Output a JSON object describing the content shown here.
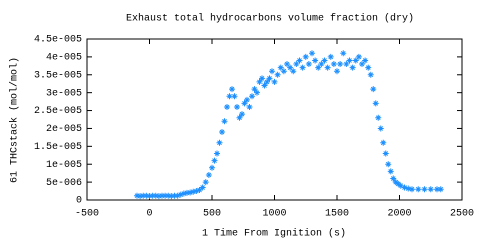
{
  "chart_data": {
    "type": "scatter",
    "title": "Exhaust total hydrocarbons volume fraction (dry)",
    "x_label": "1 Time From Ignition (s)",
    "y_label": "61 THCstack (mol/mol)",
    "color": "#1e90ff",
    "xlim": [
      -500,
      2500
    ],
    "xticks": [
      -500,
      0,
      500,
      1000,
      1500,
      2000,
      2500
    ],
    "ylim": [
      0,
      4.5e-05
    ],
    "yticks": [
      0,
      {
        "value": 5e-06,
        "label": "5e-006"
      },
      {
        "value": 1e-05,
        "label": "1e-005"
      },
      {
        "value": 1.5e-05,
        "label": "1.5e-005"
      },
      {
        "value": 2e-05,
        "label": "2e-005"
      },
      {
        "value": 2.5e-05,
        "label": "2.5e-005"
      },
      {
        "value": 3e-05,
        "label": "3e-005"
      },
      {
        "value": 3.5e-05,
        "label": "3.5e-005"
      },
      {
        "value": 4e-05,
        "label": "4e-005"
      },
      {
        "value": 4.5e-05,
        "label": "4.5e-005"
      }
    ],
    "x": [
      -100,
      -75,
      -50,
      -25,
      0,
      25,
      50,
      75,
      100,
      125,
      150,
      175,
      200,
      225,
      250,
      275,
      300,
      325,
      350,
      375,
      400,
      425,
      450,
      475,
      500,
      520,
      540,
      560,
      580,
      600,
      620,
      640,
      660,
      680,
      700,
      720,
      740,
      760,
      780,
      800,
      820,
      840,
      860,
      880,
      900,
      920,
      940,
      960,
      980,
      1000,
      1025,
      1050,
      1075,
      1100,
      1125,
      1150,
      1175,
      1200,
      1225,
      1250,
      1275,
      1300,
      1325,
      1350,
      1375,
      1400,
      1425,
      1450,
      1475,
      1500,
      1525,
      1550,
      1575,
      1600,
      1625,
      1650,
      1675,
      1700,
      1725,
      1750,
      1770,
      1790,
      1810,
      1830,
      1850,
      1870,
      1890,
      1910,
      1930,
      1950,
      1970,
      1990,
      2010,
      2040,
      2070,
      2100,
      2150,
      2200,
      2250,
      2300,
      2330
    ],
    "values": [
      1.2e-06,
      1.1e-06,
      1.2e-06,
      1.2e-06,
      1.1e-06,
      1.2e-06,
      1.2e-06,
      1.1e-06,
      1.2e-06,
      1.2e-06,
      1.2e-06,
      1.1e-06,
      1.2e-06,
      1.2e-06,
      1.5e-06,
      1.8e-06,
      2e-06,
      2.1e-06,
      2.3e-06,
      2.5e-06,
      2.8e-06,
      3.5e-06,
      5e-06,
      7e-06,
      9e-06,
      1.1e-05,
      1.3e-05,
      1.6e-05,
      1.9e-05,
      2.2e-05,
      2.6e-05,
      2.9e-05,
      3.1e-05,
      2.9e-05,
      2.6e-05,
      2.3e-05,
      2.4e-05,
      2.7e-05,
      2.8e-05,
      2.6e-05,
      2.9e-05,
      3.1e-05,
      3e-05,
      3.3e-05,
      3.4e-05,
      3.2e-05,
      3.3e-05,
      3.4e-05,
      3.6e-05,
      3.3e-05,
      3.5e-05,
      3.7e-05,
      3.6e-05,
      3.8e-05,
      3.7e-05,
      3.6e-05,
      3.8e-05,
      3.9e-05,
      3.7e-05,
      4e-05,
      3.8e-05,
      4.1e-05,
      3.9e-05,
      3.7e-05,
      3.8e-05,
      3.9e-05,
      3.7e-05,
      4e-05,
      3.8e-05,
      3.6e-05,
      3.8e-05,
      4.1e-05,
      3.8e-05,
      3.9e-05,
      3.7e-05,
      3.9e-05,
      4e-05,
      3.8e-05,
      3.9e-05,
      3.7e-05,
      3.5e-05,
      3.1e-05,
      2.7e-05,
      2.3e-05,
      2e-05,
      1.6e-05,
      1.3e-05,
      1e-05,
      8e-06,
      6e-06,
      5e-06,
      4.5e-06,
      4e-06,
      3.5e-06,
      3.2e-06,
      3e-06,
      3e-06,
      3e-06,
      3e-06,
      3e-06,
      3e-06
    ]
  }
}
